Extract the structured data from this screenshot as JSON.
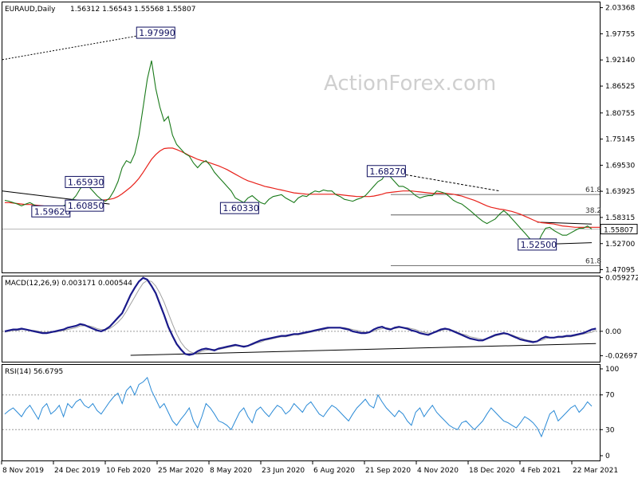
{
  "chart_data": [
    {
      "type": "line",
      "panel": "price",
      "title": "EURAUD,Daily",
      "ohlc_text": "1.56312 1.56543 1.55568 1.55807",
      "watermark": "ActionForex.com",
      "ylim": [
        1.465,
        2.045
      ],
      "y_ticks": [
        "2.03368",
        "1.97755",
        "1.92140",
        "1.86525",
        "1.80755",
        "1.75145",
        "1.69530",
        "1.63925",
        "1.58315",
        "1.52700",
        "1.47095"
      ],
      "current_price_label": "1.55807",
      "current_price": 1.55807,
      "x_ticks": [
        "8 Nov 2019",
        "24 Dec 2019",
        "10 Feb 2020",
        "25 Mar 2020",
        "8 May 2020",
        "23 Jun 2020",
        "6 Aug 2020",
        "21 Sep 2020",
        "4 Nov 2020",
        "18 Dec 2020",
        "4 Feb 2021",
        "22 Mar 2021"
      ],
      "series": [
        {
          "values": [
            1.62,
            1.618,
            1.615,
            1.612,
            1.608,
            1.612,
            1.615,
            1.61,
            1.606,
            1.603,
            1.6,
            1.597,
            1.6,
            1.604,
            1.608,
            1.614,
            1.62,
            1.63,
            1.645,
            1.656,
            1.65,
            1.64,
            1.63,
            1.622,
            1.618,
            1.625,
            1.64,
            1.66,
            1.69,
            1.705,
            1.7,
            1.72,
            1.76,
            1.82,
            1.88,
            1.92,
            1.86,
            1.82,
            1.79,
            1.8,
            1.76,
            1.74,
            1.73,
            1.72,
            1.715,
            1.7,
            1.69,
            1.7,
            1.705,
            1.695,
            1.68,
            1.67,
            1.66,
            1.65,
            1.64,
            1.625,
            1.62,
            1.615,
            1.625,
            1.63,
            1.622,
            1.615,
            1.612,
            1.622,
            1.628,
            1.63,
            1.632,
            1.625,
            1.62,
            1.615,
            1.625,
            1.63,
            1.628,
            1.635,
            1.64,
            1.638,
            1.642,
            1.64,
            1.64,
            1.632,
            1.628,
            1.622,
            1.62,
            1.618,
            1.622,
            1.625,
            1.63,
            1.64,
            1.65,
            1.66,
            1.665,
            1.68,
            1.67,
            1.66,
            1.65,
            1.65,
            1.645,
            1.638,
            1.63,
            1.625,
            1.628,
            1.63,
            1.63,
            1.64,
            1.638,
            1.635,
            1.628,
            1.62,
            1.615,
            1.612,
            1.605,
            1.598,
            1.59,
            1.582,
            1.575,
            1.57,
            1.575,
            1.58,
            1.59,
            1.598,
            1.59,
            1.58,
            1.57,
            1.56,
            1.55,
            1.54,
            1.53,
            1.525,
            1.545,
            1.56,
            1.562,
            1.555,
            1.55,
            1.545,
            1.545,
            1.55,
            1.555,
            1.56,
            1.56,
            1.565,
            1.558
          ]
        },
        {
          "values": [
            1.615,
            1.615,
            1.614,
            1.613,
            1.612,
            1.611,
            1.611,
            1.61,
            1.609,
            1.608,
            1.607,
            1.605,
            1.604,
            1.604,
            1.605,
            1.606,
            1.607,
            1.609,
            1.611,
            1.614,
            1.616,
            1.618,
            1.619,
            1.62,
            1.621,
            1.622,
            1.624,
            1.628,
            1.634,
            1.641,
            1.648,
            1.657,
            1.667,
            1.68,
            1.694,
            1.708,
            1.718,
            1.726,
            1.731,
            1.732,
            1.732,
            1.729,
            1.725,
            1.721,
            1.716,
            1.712,
            1.708,
            1.705,
            1.703,
            1.7,
            1.697,
            1.694,
            1.69,
            1.686,
            1.681,
            1.676,
            1.671,
            1.666,
            1.662,
            1.659,
            1.656,
            1.653,
            1.65,
            1.648,
            1.646,
            1.644,
            1.642,
            1.64,
            1.638,
            1.636,
            1.635,
            1.634,
            1.633,
            1.633,
            1.633,
            1.633,
            1.633,
            1.633,
            1.633,
            1.633,
            1.632,
            1.631,
            1.63,
            1.629,
            1.628,
            1.628,
            1.628,
            1.628,
            1.629,
            1.631,
            1.633,
            1.636,
            1.637,
            1.638,
            1.639,
            1.64,
            1.64,
            1.64,
            1.639,
            1.638,
            1.637,
            1.636,
            1.635,
            1.635,
            1.635,
            1.635,
            1.634,
            1.633,
            1.631,
            1.629,
            1.626,
            1.623,
            1.62,
            1.616,
            1.612,
            1.608,
            1.605,
            1.603,
            1.601,
            1.6,
            1.598,
            1.596,
            1.593,
            1.59,
            1.586,
            1.582,
            1.578,
            1.574,
            1.572,
            1.571,
            1.57,
            1.569,
            1.567,
            1.565,
            1.564,
            1.563,
            1.562,
            1.562,
            1.562,
            1.562,
            1.562,
            1.562,
            1.562
          ]
        }
      ],
      "annotations": [
        {
          "text": "1.97990",
          "x_index": 36,
          "y": 1.9799
        },
        {
          "text": "1.65930",
          "x_index": 19,
          "y": 1.6593
        },
        {
          "text": "1.59620",
          "x_index": 11,
          "y": 1.5962
        },
        {
          "text": "1.60850",
          "x_index": 19,
          "y": 1.6085
        },
        {
          "text": "1.60330",
          "x_index": 56,
          "y": 1.6033
        },
        {
          "text": "1.68270",
          "x_index": 91,
          "y": 1.6827
        },
        {
          "text": "1.52500",
          "x_index": 127,
          "y": 1.525
        }
      ],
      "fib_labels": [
        {
          "text": "61.8",
          "y": 1.6325
        },
        {
          "text": "38.2",
          "y": 1.5885
        },
        {
          "text": "61.8",
          "y": 1.4795
        }
      ]
    },
    {
      "type": "line",
      "panel": "macd",
      "title": "MACD(12,26,9) 0.003171 0.000544",
      "ylim": [
        -0.0335,
        0.0605
      ],
      "y_ticks": [
        "0.059272",
        "0.00",
        "-0.026978"
      ],
      "y_tick_values": [
        0.059272,
        0.0,
        -0.026978
      ],
      "current_label": "0.00",
      "series": [
        {
          "values": [
            0.0,
            0.001,
            0.002,
            0.002,
            0.003,
            0.002,
            0.001,
            0.0,
            -0.001,
            -0.002,
            -0.002,
            -0.001,
            0.0,
            0.001,
            0.002,
            0.004,
            0.005,
            0.006,
            0.008,
            0.007,
            0.005,
            0.003,
            0.001,
            0.0,
            0.002,
            0.005,
            0.01,
            0.015,
            0.02,
            0.03,
            0.04,
            0.048,
            0.055,
            0.059,
            0.057,
            0.05,
            0.042,
            0.03,
            0.018,
            0.005,
            -0.005,
            -0.014,
            -0.02,
            -0.025,
            -0.026,
            -0.025,
            -0.022,
            -0.02,
            -0.019,
            -0.02,
            -0.021,
            -0.019,
            -0.018,
            -0.017,
            -0.016,
            -0.015,
            -0.016,
            -0.017,
            -0.016,
            -0.014,
            -0.012,
            -0.01,
            -0.009,
            -0.008,
            -0.007,
            -0.006,
            -0.005,
            -0.005,
            -0.004,
            -0.003,
            -0.003,
            -0.002,
            -0.001,
            0.0,
            0.001,
            0.002,
            0.003,
            0.004,
            0.004,
            0.004,
            0.004,
            0.003,
            0.002,
            0.0,
            -0.001,
            -0.002,
            -0.002,
            -0.001,
            0.002,
            0.004,
            0.005,
            0.003,
            0.002,
            0.004,
            0.005,
            0.004,
            0.003,
            0.001,
            0.0,
            -0.002,
            -0.003,
            -0.004,
            -0.002,
            0.0,
            0.002,
            0.003,
            0.002,
            0.0,
            -0.002,
            -0.004,
            -0.006,
            -0.008,
            -0.009,
            -0.01,
            -0.01,
            -0.008,
            -0.006,
            -0.004,
            -0.003,
            -0.002,
            -0.003,
            -0.005,
            -0.007,
            -0.009,
            -0.01,
            -0.011,
            -0.012,
            -0.011,
            -0.008,
            -0.006,
            -0.007,
            -0.007,
            -0.006,
            -0.006,
            -0.005,
            -0.005,
            -0.004,
            -0.003,
            -0.002,
            0.0,
            0.002,
            0.003
          ]
        },
        {
          "values": [
            -0.001,
            0.0,
            0.001,
            0.001,
            0.002,
            0.002,
            0.001,
            0.001,
            0.0,
            -0.001,
            -0.001,
            -0.001,
            -0.001,
            0.0,
            0.001,
            0.002,
            0.003,
            0.004,
            0.006,
            0.006,
            0.006,
            0.005,
            0.003,
            0.002,
            0.002,
            0.003,
            0.006,
            0.01,
            0.015,
            0.022,
            0.03,
            0.038,
            0.046,
            0.053,
            0.056,
            0.055,
            0.05,
            0.042,
            0.032,
            0.02,
            0.008,
            -0.003,
            -0.012,
            -0.018,
            -0.022,
            -0.024,
            -0.024,
            -0.022,
            -0.021,
            -0.02,
            -0.02,
            -0.02,
            -0.019,
            -0.018,
            -0.017,
            -0.016,
            -0.016,
            -0.016,
            -0.016,
            -0.015,
            -0.013,
            -0.012,
            -0.01,
            -0.009,
            -0.008,
            -0.007,
            -0.006,
            -0.006,
            -0.005,
            -0.004,
            -0.004,
            -0.003,
            -0.002,
            -0.001,
            0.0,
            0.001,
            0.002,
            0.003,
            0.004,
            0.004,
            0.004,
            0.004,
            0.003,
            0.002,
            0.001,
            0.0,
            -0.001,
            -0.001,
            0.0,
            0.002,
            0.003,
            0.004,
            0.003,
            0.003,
            0.004,
            0.004,
            0.004,
            0.003,
            0.002,
            0.0,
            -0.001,
            -0.002,
            -0.002,
            -0.001,
            0.001,
            0.002,
            0.002,
            0.001,
            -0.001,
            -0.003,
            -0.004,
            -0.006,
            -0.007,
            -0.008,
            -0.009,
            -0.008,
            -0.007,
            -0.005,
            -0.004,
            -0.003,
            -0.003,
            -0.004,
            -0.006,
            -0.007,
            -0.009,
            -0.01,
            -0.011,
            -0.011,
            -0.01,
            -0.008,
            -0.007,
            -0.007,
            -0.007,
            -0.007,
            -0.006,
            -0.006,
            -0.005,
            -0.004,
            -0.003,
            -0.002,
            -0.001,
            0.001
          ]
        }
      ],
      "trendline": [
        {
          "x_index": 30,
          "y": -0.0265
        },
        {
          "x_index": 141,
          "y": -0.0135
        }
      ]
    },
    {
      "type": "line",
      "panel": "rsi",
      "title": "RSI(14) 56.6795",
      "ylim": [
        0,
        100
      ],
      "y_ticks": [
        "100",
        "70",
        "30",
        "0"
      ],
      "y_tick_values": [
        100,
        70,
        30,
        0
      ],
      "levels": [
        70,
        30
      ],
      "series": [
        {
          "values": [
            48,
            52,
            55,
            50,
            45,
            53,
            58,
            50,
            42,
            55,
            60,
            48,
            52,
            58,
            45,
            60,
            55,
            62,
            65,
            58,
            55,
            60,
            52,
            48,
            55,
            62,
            68,
            72,
            60,
            75,
            80,
            70,
            82,
            85,
            90,
            75,
            65,
            55,
            60,
            50,
            40,
            35,
            42,
            48,
            55,
            40,
            32,
            45,
            60,
            55,
            48,
            40,
            38,
            35,
            30,
            40,
            50,
            55,
            45,
            38,
            52,
            56,
            50,
            45,
            52,
            58,
            55,
            48,
            52,
            60,
            55,
            50,
            58,
            62,
            55,
            48,
            45,
            52,
            58,
            55,
            50,
            45,
            40,
            48,
            55,
            60,
            65,
            58,
            55,
            70,
            62,
            55,
            50,
            45,
            52,
            48,
            40,
            35,
            50,
            55,
            45,
            52,
            58,
            50,
            45,
            40,
            35,
            32,
            30,
            38,
            40,
            35,
            30,
            35,
            40,
            48,
            55,
            50,
            45,
            40,
            38,
            35,
            32,
            38,
            45,
            42,
            38,
            32,
            22,
            35,
            48,
            52,
            40,
            45,
            50,
            55,
            58,
            50,
            55,
            62,
            57
          ]
        }
      ]
    }
  ]
}
